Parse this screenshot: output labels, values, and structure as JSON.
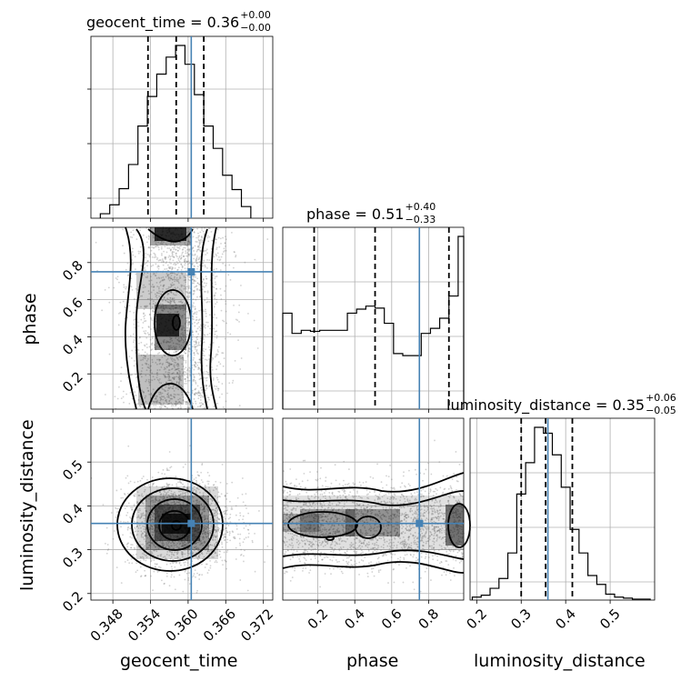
{
  "chart_data": {
    "type": "corner",
    "parameters": [
      "geocent_time",
      "phase",
      "luminosity_distance"
    ],
    "truth": {
      "geocent_time": 0.3605,
      "phase": 0.75,
      "luminosity_distance": 0.36
    },
    "truth_color": "#4682b4",
    "titles": [
      {
        "param": "geocent_time",
        "text": "geocent_time = 0.36",
        "plus": "+0.00",
        "minus": "−0.00"
      },
      {
        "param": "phase",
        "text": "phase = 0.51",
        "plus": "+0.40",
        "minus": "−0.33"
      },
      {
        "param": "luminosity_distance",
        "text": "luminosity_distance = 0.35",
        "plus": "+0.06",
        "minus": "−0.05"
      }
    ],
    "axis_labels": {
      "x": [
        "geocent_time",
        "phase",
        "luminosity_distance"
      ],
      "y": [
        "phase",
        "luminosity_distance"
      ]
    },
    "ranges": {
      "geocent_time": [
        0.3445,
        0.3735
      ],
      "phase": [
        0.01,
        0.99
      ],
      "luminosity_distance": [
        0.185,
        0.6
      ]
    },
    "ticks": {
      "geocent_time": [
        "0.348",
        "0.354",
        "0.360",
        "0.366",
        "0.372"
      ],
      "phase_x": [
        "0.2",
        "0.4",
        "0.6",
        "0.8"
      ],
      "phase_y": [
        "0.2",
        "0.4",
        "0.6",
        "0.8"
      ],
      "luminosity_distance_x": [
        "0.2",
        "0.3",
        "0.4",
        "0.5"
      ],
      "luminosity_distance_y": [
        "0.2",
        "0.3",
        "0.4",
        "0.5"
      ]
    },
    "quantiles": {
      "geocent_time": [
        0.3536,
        0.3581,
        0.3625
      ],
      "phase": [
        0.18,
        0.51,
        0.91
      ],
      "luminosity_distance": [
        0.3,
        0.355,
        0.415
      ]
    },
    "hist_geocent_time": {
      "edges": [
        0.346,
        0.3475,
        0.349,
        0.3505,
        0.352,
        0.3535,
        0.355,
        0.3565,
        0.358,
        0.3595,
        0.361,
        0.3625,
        0.364,
        0.3655,
        0.367,
        0.3685,
        0.37
      ],
      "counts": [
        5,
        15,
        33,
        60,
        103,
        136,
        161,
        180,
        193,
        172,
        138,
        103,
        78,
        48,
        32,
        13
      ]
    },
    "hist_phase": {
      "edges": [
        0.01,
        0.06,
        0.11,
        0.16,
        0.21,
        0.26,
        0.31,
        0.36,
        0.41,
        0.46,
        0.51,
        0.56,
        0.61,
        0.66,
        0.71,
        0.76,
        0.81,
        0.86,
        0.91,
        0.96,
        0.99
      ],
      "counts": [
        95,
        75,
        78,
        77,
        78,
        78,
        78,
        95,
        99,
        102,
        100,
        85,
        55,
        53,
        53,
        75,
        80,
        90,
        112,
        171
      ]
    },
    "hist_luminosity_distance": {
      "edges": [
        0.19,
        0.21,
        0.23,
        0.25,
        0.27,
        0.29,
        0.31,
        0.33,
        0.35,
        0.37,
        0.39,
        0.41,
        0.43,
        0.45,
        0.47,
        0.49,
        0.51,
        0.53,
        0.55,
        0.57,
        0.59
      ],
      "counts": [
        3,
        5,
        12,
        22,
        48,
        108,
        140,
        176,
        170,
        148,
        115,
        72,
        48,
        25,
        16,
        6,
        3,
        2,
        1,
        1
      ]
    }
  }
}
